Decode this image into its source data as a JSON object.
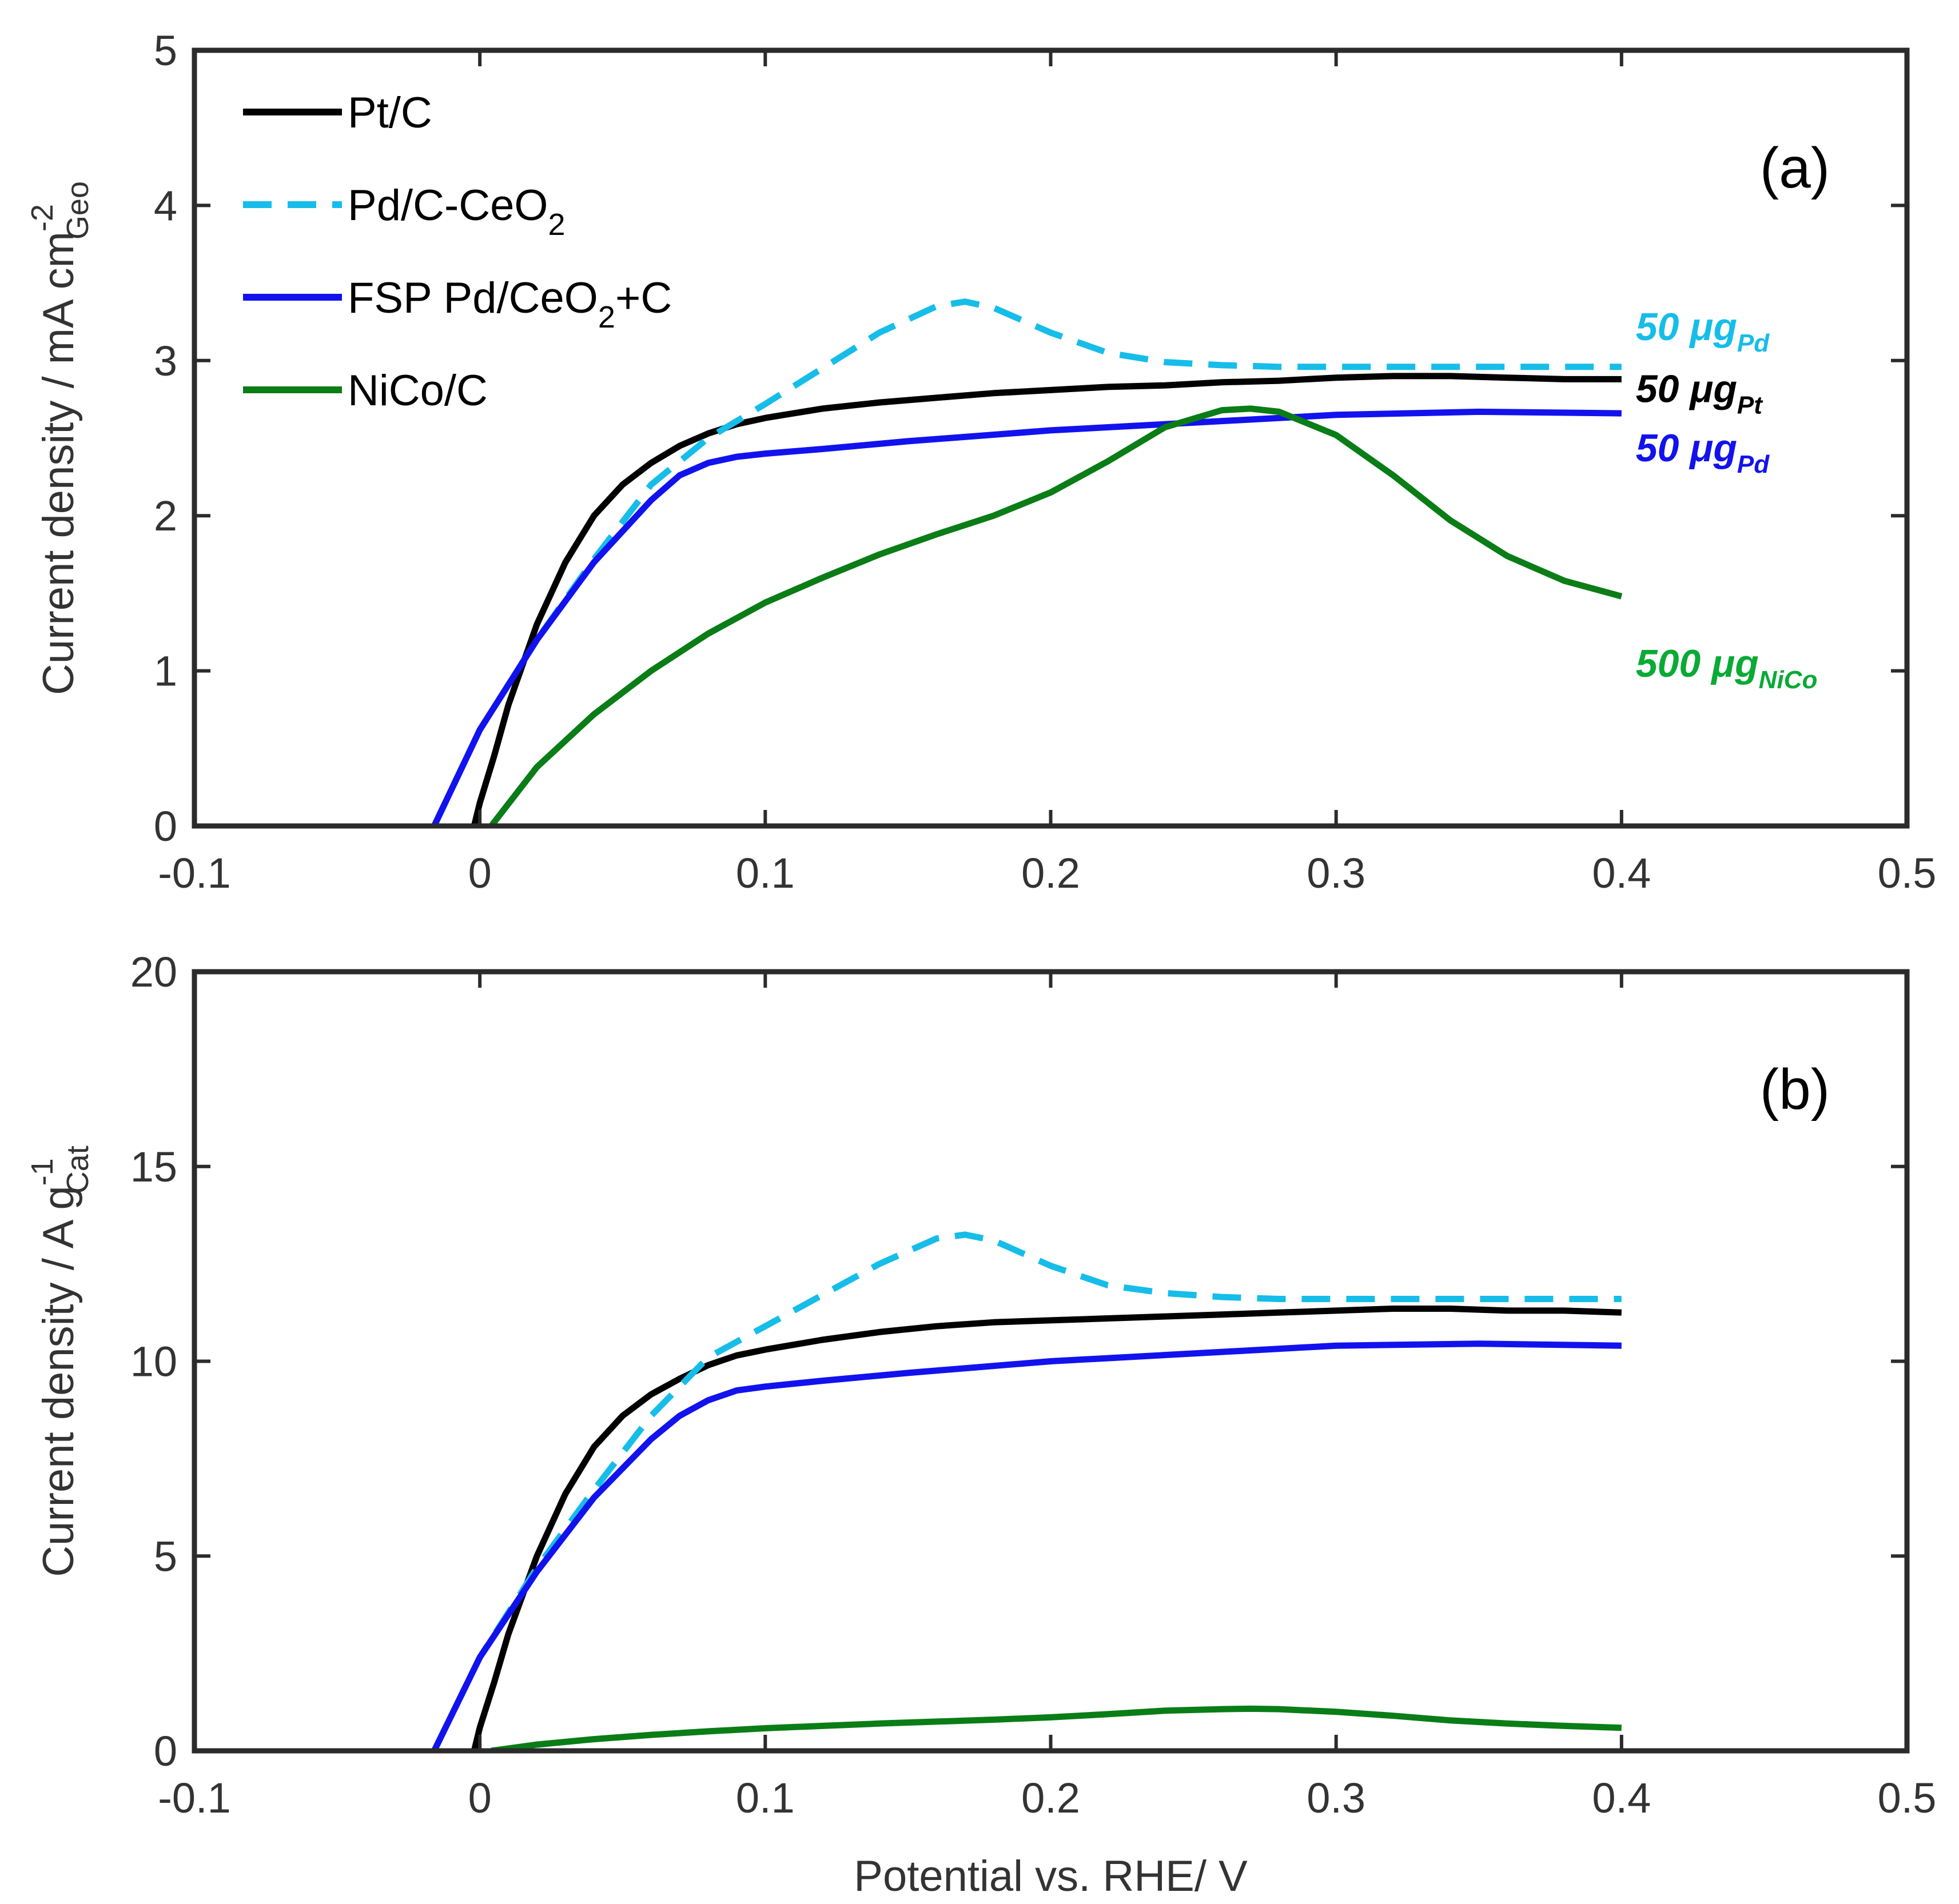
{
  "colors": {
    "pt_c": "#000000",
    "pd_c_ceo2": "#16bde9",
    "fsp_pd": "#1212ee",
    "nico": "#0a7d16",
    "nico_anno": "#0aaa35",
    "axis": "#2b2b2b"
  },
  "chart_data": [
    {
      "type": "line",
      "panel_label": "(a)",
      "xlabel": "",
      "ylabel": {
        "main": "Current density / mA cm",
        "sup": "-2",
        "sub": "Geo"
      },
      "xlim": [
        -0.1,
        0.5
      ],
      "ylim": [
        0,
        5
      ],
      "xticks": [
        -0.1,
        0,
        0.1,
        0.2,
        0.3,
        0.4,
        0.5
      ],
      "xtick_labels": [
        "-0.1",
        "0",
        "0.1",
        "0.2",
        "0.3",
        "0.4",
        "0.5"
      ],
      "yticks": [
        0,
        1,
        2,
        3,
        4,
        5
      ],
      "ytick_labels": [
        "0",
        "1",
        "2",
        "3",
        "4",
        "5"
      ],
      "legend": {
        "position": "top-left",
        "entries": [
          {
            "series": "pt_c",
            "parts": [
              {
                "t": "Pt/C"
              }
            ]
          },
          {
            "series": "pd_c_ceo2",
            "parts": [
              {
                "t": "Pd/C-CeO"
              },
              {
                "t": "2",
                "sub": true
              }
            ]
          },
          {
            "series": "fsp_pd",
            "parts": [
              {
                "t": "FSP Pd/CeO"
              },
              {
                "t": "2",
                "sub": true
              },
              {
                "t": "+C"
              }
            ]
          },
          {
            "series": "nico",
            "parts": [
              {
                "t": "NiCo/C"
              }
            ]
          }
        ]
      },
      "annotations": [
        {
          "series": "pd_c_ceo2",
          "color": "#16bde9",
          "x": 0.405,
          "y": 3.22,
          "main": "50 μg",
          "sub": "Pd"
        },
        {
          "series": "pt_c",
          "color": "#000000",
          "x": 0.405,
          "y": 2.82,
          "main": "50 μg",
          "sub": "Pt"
        },
        {
          "series": "fsp_pd",
          "color": "#1212ee",
          "x": 0.405,
          "y": 2.44,
          "main": "50 μg",
          "sub": "Pd"
        },
        {
          "series": "nico",
          "color": "#0aaa35",
          "x": 0.405,
          "y": 1.05,
          "main": "500 μg",
          "sub": "NiCo"
        }
      ],
      "series": [
        {
          "id": "pt_c",
          "name": "Pt/C",
          "color": "#000000",
          "dash": false,
          "x": [
            -0.002,
            0.0,
            0.005,
            0.01,
            0.02,
            0.03,
            0.04,
            0.05,
            0.06,
            0.07,
            0.08,
            0.09,
            0.1,
            0.12,
            0.14,
            0.16,
            0.18,
            0.2,
            0.22,
            0.24,
            0.26,
            0.28,
            0.3,
            0.32,
            0.34,
            0.36,
            0.38,
            0.4
          ],
          "y": [
            0.0,
            0.15,
            0.45,
            0.78,
            1.3,
            1.7,
            2.0,
            2.2,
            2.34,
            2.45,
            2.53,
            2.59,
            2.63,
            2.69,
            2.73,
            2.76,
            2.79,
            2.81,
            2.83,
            2.84,
            2.86,
            2.87,
            2.89,
            2.9,
            2.9,
            2.89,
            2.88,
            2.88
          ]
        },
        {
          "id": "pd_c_ceo2",
          "name": "Pd/C-CeO2",
          "color": "#16bde9",
          "dash": true,
          "x": [
            -0.016,
            0.0,
            0.02,
            0.04,
            0.06,
            0.08,
            0.1,
            0.12,
            0.14,
            0.16,
            0.17,
            0.18,
            0.2,
            0.22,
            0.24,
            0.26,
            0.28,
            0.3,
            0.34,
            0.38,
            0.4
          ],
          "y": [
            0.0,
            0.62,
            1.2,
            1.72,
            2.2,
            2.5,
            2.72,
            2.95,
            3.18,
            3.35,
            3.38,
            3.34,
            3.18,
            3.05,
            2.99,
            2.97,
            2.96,
            2.96,
            2.96,
            2.96,
            2.96
          ]
        },
        {
          "id": "fsp_pd",
          "name": "FSP Pd/CeO2+C",
          "color": "#1212ee",
          "dash": false,
          "x": [
            -0.016,
            0.0,
            0.02,
            0.04,
            0.06,
            0.07,
            0.08,
            0.09,
            0.1,
            0.12,
            0.15,
            0.2,
            0.25,
            0.3,
            0.35,
            0.4
          ],
          "y": [
            0.0,
            0.62,
            1.2,
            1.7,
            2.1,
            2.26,
            2.34,
            2.38,
            2.4,
            2.43,
            2.48,
            2.55,
            2.6,
            2.65,
            2.67,
            2.66
          ]
        },
        {
          "id": "nico",
          "name": "NiCo/C",
          "color": "#0a7d16",
          "dash": false,
          "x": [
            0.004,
            0.02,
            0.04,
            0.06,
            0.08,
            0.1,
            0.12,
            0.14,
            0.16,
            0.18,
            0.2,
            0.22,
            0.24,
            0.26,
            0.27,
            0.28,
            0.3,
            0.32,
            0.34,
            0.36,
            0.38,
            0.4
          ],
          "y": [
            0.0,
            0.38,
            0.72,
            1.0,
            1.24,
            1.44,
            1.6,
            1.75,
            1.88,
            2.0,
            2.15,
            2.35,
            2.57,
            2.68,
            2.69,
            2.67,
            2.52,
            2.26,
            1.97,
            1.74,
            1.58,
            1.48
          ]
        }
      ]
    },
    {
      "type": "line",
      "panel_label": "(b)",
      "xlabel": "Potential vs. RHE/ V",
      "ylabel": {
        "main": "Current density / A g",
        "sup": "-1",
        "sub": "Cat"
      },
      "xlim": [
        -0.1,
        0.5
      ],
      "ylim": [
        0,
        20
      ],
      "xticks": [
        -0.1,
        0,
        0.1,
        0.2,
        0.3,
        0.4,
        0.5
      ],
      "xtick_labels": [
        "-0.1",
        "0",
        "0.1",
        "0.2",
        "0.3",
        "0.4",
        "0.5"
      ],
      "yticks": [
        0,
        5,
        10,
        15,
        20
      ],
      "ytick_labels": [
        "0",
        "5",
        "10",
        "15",
        "20"
      ],
      "legend": null,
      "annotations": [],
      "series": [
        {
          "id": "pt_c",
          "name": "Pt/C",
          "color": "#000000",
          "dash": false,
          "x": [
            -0.002,
            0.0,
            0.005,
            0.01,
            0.02,
            0.03,
            0.04,
            0.05,
            0.06,
            0.07,
            0.08,
            0.09,
            0.1,
            0.12,
            0.14,
            0.16,
            0.18,
            0.2,
            0.22,
            0.24,
            0.26,
            0.28,
            0.3,
            0.32,
            0.34,
            0.36,
            0.38,
            0.4
          ],
          "y": [
            0.0,
            0.6,
            1.75,
            3.0,
            5.0,
            6.6,
            7.8,
            8.6,
            9.15,
            9.55,
            9.9,
            10.15,
            10.3,
            10.55,
            10.75,
            10.9,
            11.0,
            11.05,
            11.1,
            11.15,
            11.2,
            11.25,
            11.3,
            11.35,
            11.35,
            11.3,
            11.3,
            11.25
          ]
        },
        {
          "id": "pd_c_ceo2",
          "name": "Pd/C-CeO2",
          "color": "#16bde9",
          "dash": true,
          "x": [
            -0.016,
            0.0,
            0.02,
            0.04,
            0.06,
            0.08,
            0.1,
            0.12,
            0.14,
            0.16,
            0.17,
            0.18,
            0.2,
            0.22,
            0.24,
            0.26,
            0.28,
            0.3,
            0.34,
            0.38,
            0.4
          ],
          "y": [
            0.0,
            2.4,
            4.7,
            6.7,
            8.6,
            10.1,
            10.9,
            11.7,
            12.5,
            13.15,
            13.25,
            13.1,
            12.45,
            11.95,
            11.75,
            11.65,
            11.6,
            11.6,
            11.6,
            11.6,
            11.6
          ]
        },
        {
          "id": "fsp_pd",
          "name": "FSP Pd/CeO2+C",
          "color": "#1212ee",
          "dash": false,
          "x": [
            -0.016,
            0.0,
            0.02,
            0.04,
            0.06,
            0.07,
            0.08,
            0.09,
            0.1,
            0.12,
            0.15,
            0.2,
            0.25,
            0.3,
            0.35,
            0.4
          ],
          "y": [
            0.0,
            2.4,
            4.6,
            6.5,
            8.0,
            8.6,
            9.0,
            9.25,
            9.35,
            9.5,
            9.7,
            10.0,
            10.2,
            10.4,
            10.45,
            10.4
          ]
        },
        {
          "id": "nico",
          "name": "NiCo/C",
          "color": "#0a7d16",
          "dash": false,
          "x": [
            0.004,
            0.02,
            0.04,
            0.06,
            0.08,
            0.1,
            0.12,
            0.14,
            0.16,
            0.18,
            0.2,
            0.22,
            0.24,
            0.26,
            0.27,
            0.28,
            0.3,
            0.32,
            0.34,
            0.36,
            0.38,
            0.4
          ],
          "y": [
            0.0,
            0.16,
            0.3,
            0.41,
            0.5,
            0.58,
            0.64,
            0.7,
            0.75,
            0.8,
            0.86,
            0.94,
            1.03,
            1.07,
            1.08,
            1.07,
            1.0,
            0.9,
            0.78,
            0.7,
            0.64,
            0.59
          ]
        }
      ]
    }
  ]
}
